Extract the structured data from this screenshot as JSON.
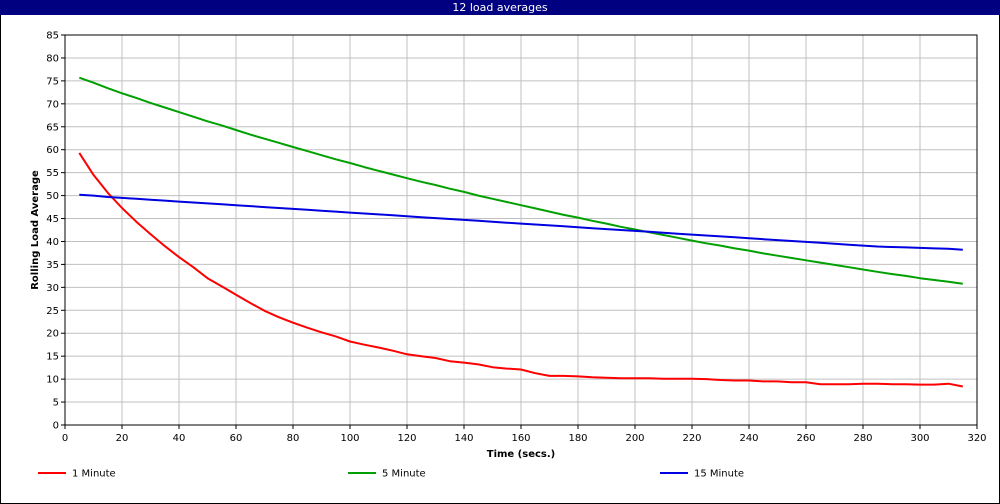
{
  "window": {
    "title": "12 load averages"
  },
  "chart_data": {
    "type": "line",
    "title": "12 load averages",
    "xlabel": "Time (secs.)",
    "ylabel": "Rolling Load Average",
    "xlim": [
      0,
      320
    ],
    "ylim": [
      0,
      85
    ],
    "xticks": [
      0,
      20,
      40,
      60,
      80,
      100,
      120,
      140,
      160,
      180,
      200,
      220,
      240,
      260,
      280,
      300,
      320
    ],
    "yticks": [
      0,
      5,
      10,
      15,
      20,
      25,
      30,
      35,
      40,
      45,
      50,
      55,
      60,
      65,
      70,
      75,
      80,
      85
    ],
    "grid": true,
    "legend_position": "bottom",
    "x": [
      5,
      10,
      15,
      20,
      25,
      30,
      35,
      40,
      45,
      50,
      55,
      60,
      65,
      70,
      75,
      80,
      85,
      90,
      95,
      100,
      105,
      110,
      115,
      120,
      125,
      130,
      135,
      140,
      145,
      150,
      155,
      160,
      165,
      170,
      175,
      180,
      185,
      190,
      195,
      200,
      205,
      210,
      215,
      220,
      225,
      230,
      235,
      240,
      245,
      250,
      255,
      260,
      265,
      270,
      275,
      280,
      285,
      290,
      295,
      300,
      305,
      310,
      315
    ],
    "series": [
      {
        "name": "1 Minute",
        "color": "#ff0000",
        "values": [
          59.3,
          54.5,
          50.6,
          47.3,
          44.3,
          41.6,
          39.0,
          36.6,
          34.4,
          32.0,
          30.2,
          28.4,
          26.6,
          24.9,
          23.5,
          22.3,
          21.2,
          20.2,
          19.3,
          18.2,
          17.5,
          16.9,
          16.2,
          15.4,
          15.0,
          14.6,
          13.9,
          13.6,
          13.2,
          12.6,
          12.3,
          12.1,
          11.3,
          10.7,
          10.7,
          10.6,
          10.4,
          10.3,
          10.2,
          10.2,
          10.2,
          10.1,
          10.1,
          10.1,
          10.0,
          9.8,
          9.7,
          9.7,
          9.5,
          9.5,
          9.3,
          9.3,
          8.9,
          8.9,
          8.9,
          9.0,
          9.0,
          8.9,
          8.9,
          8.8,
          8.8,
          9.0,
          8.4
        ]
      },
      {
        "name": "5 Minute",
        "color": "#00a000",
        "values": [
          75.7,
          74.6,
          73.4,
          72.3,
          71.3,
          70.2,
          69.2,
          68.2,
          67.2,
          66.2,
          65.3,
          64.3,
          63.3,
          62.4,
          61.5,
          60.6,
          59.7,
          58.8,
          57.9,
          57.1,
          56.2,
          55.4,
          54.6,
          53.8,
          53.0,
          52.3,
          51.5,
          50.8,
          50.0,
          49.3,
          48.6,
          47.9,
          47.2,
          46.5,
          45.8,
          45.2,
          44.5,
          43.9,
          43.2,
          42.6,
          42.0,
          41.4,
          40.8,
          40.2,
          39.6,
          39.1,
          38.5,
          38.0,
          37.4,
          36.9,
          36.4,
          35.9,
          35.4,
          34.9,
          34.4,
          33.9,
          33.4,
          32.9,
          32.5,
          32.0,
          31.6,
          31.2,
          30.8
        ]
      },
      {
        "name": "15 Minute",
        "color": "#0000e0",
        "values": [
          50.2,
          50.0,
          49.7,
          49.5,
          49.3,
          49.1,
          48.9,
          48.7,
          48.5,
          48.3,
          48.1,
          47.9,
          47.7,
          47.5,
          47.3,
          47.1,
          46.9,
          46.7,
          46.5,
          46.3,
          46.1,
          45.9,
          45.7,
          45.5,
          45.3,
          45.1,
          44.9,
          44.7,
          44.5,
          44.3,
          44.1,
          43.9,
          43.7,
          43.5,
          43.3,
          43.1,
          42.9,
          42.7,
          42.5,
          42.3,
          42.1,
          41.9,
          41.7,
          41.5,
          41.3,
          41.1,
          40.9,
          40.7,
          40.5,
          40.3,
          40.1,
          39.9,
          39.7,
          39.5,
          39.3,
          39.1,
          38.9,
          38.8,
          38.7,
          38.6,
          38.5,
          38.4,
          38.2
        ]
      }
    ]
  }
}
